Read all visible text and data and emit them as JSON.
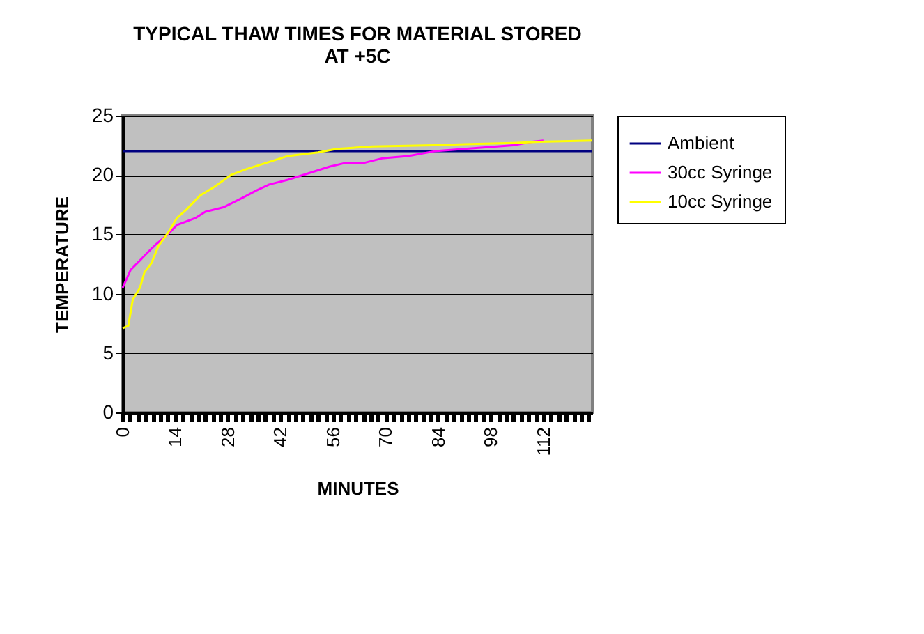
{
  "chart_data": {
    "type": "line",
    "title": "TYPICAL THAW TIMES FOR MATERIAL STORED AT +5C",
    "xlabel": "MINUTES",
    "ylabel": "TEMPERATURE",
    "xlim": [
      0,
      125
    ],
    "ylim": [
      0,
      25
    ],
    "yticks": [
      0,
      5,
      10,
      15,
      20,
      25
    ],
    "xticks": [
      0,
      {
        "value": 2,
        "label": null
      },
      {
        "value": 4,
        "label": null
      },
      {
        "value": 6,
        "label": null
      },
      {
        "value": 8,
        "label": null
      },
      {
        "value": 10,
        "label": null
      },
      {
        "value": 12,
        "label": null
      },
      14,
      {
        "value": 16,
        "label": null
      },
      {
        "value": 18,
        "label": null
      },
      {
        "value": 20,
        "label": null
      },
      {
        "value": 22,
        "label": null
      },
      {
        "value": 24,
        "label": null
      },
      {
        "value": 26,
        "label": null
      },
      28,
      {
        "value": 30,
        "label": null
      },
      {
        "value": 32,
        "label": null
      },
      {
        "value": 34,
        "label": null
      },
      {
        "value": 36,
        "label": null
      },
      {
        "value": 38,
        "label": null
      },
      {
        "value": 40,
        "label": null
      },
      42,
      {
        "value": 44,
        "label": null
      },
      {
        "value": 46,
        "label": null
      },
      {
        "value": 48,
        "label": null
      },
      {
        "value": 50,
        "label": null
      },
      {
        "value": 52,
        "label": null
      },
      {
        "value": 54,
        "label": null
      },
      56,
      {
        "value": 58,
        "label": null
      },
      {
        "value": 60,
        "label": null
      },
      {
        "value": 62,
        "label": null
      },
      {
        "value": 64,
        "label": null
      },
      {
        "value": 66,
        "label": null
      },
      {
        "value": 68,
        "label": null
      },
      70,
      {
        "value": 72,
        "label": null
      },
      {
        "value": 74,
        "label": null
      },
      {
        "value": 76,
        "label": null
      },
      {
        "value": 78,
        "label": null
      },
      {
        "value": 80,
        "label": null
      },
      {
        "value": 82,
        "label": null
      },
      84,
      {
        "value": 86,
        "label": null
      },
      {
        "value": 88,
        "label": null
      },
      {
        "value": 90,
        "label": null
      },
      {
        "value": 92,
        "label": null
      },
      {
        "value": 94,
        "label": null
      },
      {
        "value": 96,
        "label": null
      },
      98,
      {
        "value": 100,
        "label": null
      },
      {
        "value": 102,
        "label": null
      },
      {
        "value": 104,
        "label": null
      },
      {
        "value": 106,
        "label": null
      },
      {
        "value": 108,
        "label": null
      },
      {
        "value": 110,
        "label": null
      },
      112,
      {
        "value": 114,
        "label": null
      },
      {
        "value": 116,
        "label": null
      },
      {
        "value": 118,
        "label": null
      },
      {
        "value": 120,
        "label": null
      },
      {
        "value": 122,
        "label": null
      },
      {
        "value": 124,
        "label": null
      }
    ],
    "grid": "y",
    "legend": "right",
    "marker": "none",
    "line_style": "solid",
    "series": [
      {
        "name": "Ambient",
        "color": "#000080",
        "x": [
          0,
          125
        ],
        "values": [
          22,
          22
        ]
      },
      {
        "name": "30cc Syringe",
        "color": "#ff00ff",
        "x": [
          0,
          2.1,
          4.6,
          6.4,
          9,
          12,
          14.5,
          19.5,
          22,
          27,
          32,
          35.6,
          39,
          44,
          49,
          55,
          59,
          64,
          69,
          76,
          83,
          91,
          104,
          109,
          112
        ],
        "values": [
          10.5,
          12.0,
          12.8,
          13.4,
          14.2,
          15.0,
          15.8,
          16.4,
          16.9,
          17.3,
          18.1,
          18.7,
          19.2,
          19.6,
          20.1,
          20.7,
          21.0,
          21.0,
          21.4,
          21.6,
          22.0,
          22.2,
          22.5,
          22.8,
          22.9
        ]
      },
      {
        "name": "10cc Syringe",
        "color": "#ffff00",
        "x": [
          0,
          1.5,
          2.7,
          4.6,
          5.8,
          7.7,
          9.5,
          12,
          14.5,
          17,
          20.7,
          24.4,
          28.8,
          33,
          38,
          44,
          52,
          57,
          66.5,
          82.7,
          91,
          104,
          111,
          125
        ],
        "values": [
          7.1,
          7.3,
          9.5,
          10.5,
          11.8,
          12.6,
          14.0,
          15.1,
          16.4,
          17.1,
          18.3,
          19.0,
          20.0,
          20.5,
          21.0,
          21.6,
          21.9,
          22.2,
          22.4,
          22.5,
          22.6,
          22.7,
          22.8,
          22.9
        ]
      }
    ]
  }
}
